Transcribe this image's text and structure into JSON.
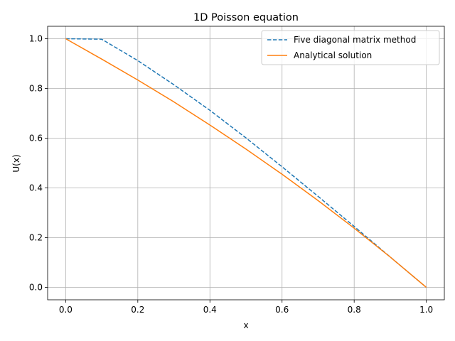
{
  "chart_data": {
    "type": "line",
    "title": "1D Poisson equation",
    "xlabel": "x",
    "ylabel": "U(x)",
    "xlim": [
      -0.05,
      1.05
    ],
    "ylim": [
      -0.05,
      1.05
    ],
    "x_ticks": [
      "0.0",
      "0.2",
      "0.4",
      "0.6",
      "0.8",
      "1.0"
    ],
    "y_ticks": [
      "0.0",
      "0.2",
      "0.4",
      "0.6",
      "0.8",
      "1.0"
    ],
    "grid": true,
    "legend_position": "top-right",
    "series": [
      {
        "name": "Five diagonal matrix method",
        "style": "dashed",
        "color": "#1f77b4",
        "x": [
          0.0,
          0.1,
          0.2,
          0.3,
          0.4,
          0.5,
          0.6,
          0.7,
          0.8,
          0.9,
          1.0
        ],
        "y": [
          1.0,
          0.998,
          0.912,
          0.815,
          0.712,
          0.601,
          0.485,
          0.366,
          0.245,
          0.122,
          0.0
        ]
      },
      {
        "name": "Analytical solution",
        "style": "solid",
        "color": "#ff7f0e",
        "x": [
          0.0,
          0.1,
          0.2,
          0.3,
          0.4,
          0.5,
          0.6,
          0.7,
          0.8,
          0.9,
          1.0
        ],
        "y": [
          1.0,
          0.918,
          0.834,
          0.746,
          0.653,
          0.556,
          0.455,
          0.349,
          0.238,
          0.122,
          0.0
        ]
      }
    ]
  }
}
